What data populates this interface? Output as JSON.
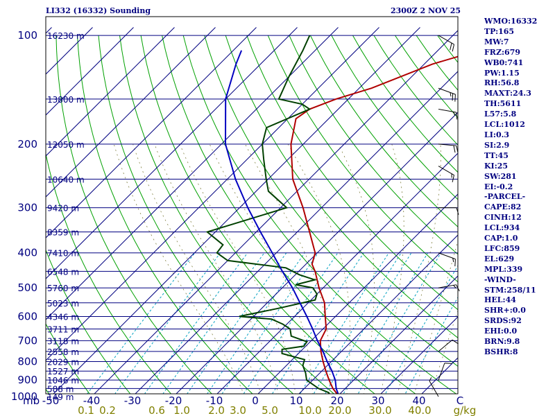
{
  "header": {
    "station": "LI332 (16332) Sounding",
    "time": "2300Z  2 NOV 25"
  },
  "stats": [
    "WMO:16332",
    "TP:165",
    "MW:7",
    "FRZ:679",
    "WB0:741",
    "PW:1.15",
    "RH:56.8",
    "MAXT:24.3",
    "TH:5611",
    "L57:5.8",
    "LCL:1012",
    "LI:0.3",
    "SI:2.9",
    "TT:45",
    "KI:25",
    "SW:281",
    "EI:-0.2",
    "-PARCEL-",
    "CAPE:82",
    "CINH:12",
    "LCL:934",
    "CAP:1.0",
    "LFC:859",
    "EL:629",
    "MPL:339",
    "-WIND-",
    "STM:258/11",
    "HEL:44",
    "SHR+:0.0",
    "SRDS:92",
    "EHI:0.0",
    "BRN:9.8",
    "BSHR:8"
  ],
  "colors": {
    "isobar": "#000080",
    "isotherm": "#000080",
    "dry_adiabat": "#00a000",
    "mixing_ratio": "#00a0c0",
    "temperature": "#b00000",
    "dewpoint": "#004000",
    "parcel": "#0000c0",
    "axis_text": "#000080",
    "mixing_label": "#808000"
  },
  "chart_data": {
    "type": "line",
    "title": "",
    "x_unit_label": "C",
    "y_unit_label": "mb",
    "mixing_unit_label": "g/kg",
    "xlim": [
      -50,
      50
    ],
    "ylim": [
      1000,
      100
    ],
    "pressure_ticks": [
      100,
      200,
      300,
      400,
      500,
      600,
      700,
      800,
      900,
      1000
    ],
    "temperature_ticks": [
      -50,
      -40,
      -30,
      -20,
      -10,
      0,
      10,
      20,
      30,
      40,
      50
    ],
    "temperature_tick_labels": [
      "-50",
      "-40",
      "-30",
      "-20",
      "-10",
      "0",
      "10",
      "20",
      "30",
      "40",
      "C"
    ],
    "mixing_ratio_labels": [
      "0.1",
      "0.2",
      "0.6",
      "1.0",
      "2.0",
      "3.0",
      "5.0",
      "10.0",
      "20.0",
      "30.0",
      "40.0"
    ],
    "heights": [
      {
        "p": 100,
        "label": "16230 m"
      },
      {
        "p": 150,
        "label": "13800 m"
      },
      {
        "p": 200,
        "label": "12050 m"
      },
      {
        "p": 250,
        "label": "10640 m"
      },
      {
        "p": 300,
        "label": "9420 m"
      },
      {
        "p": 350,
        "label": "8359 m"
      },
      {
        "p": 400,
        "label": "7410 m"
      },
      {
        "p": 450,
        "label": "6548 m"
      },
      {
        "p": 500,
        "label": "5760 m"
      },
      {
        "p": 550,
        "label": "5023 m"
      },
      {
        "p": 600,
        "label": "4346 m"
      },
      {
        "p": 650,
        "label": "3711 m"
      },
      {
        "p": 700,
        "label": "3118 m"
      },
      {
        "p": 750,
        "label": "2558 m"
      },
      {
        "p": 800,
        "label": "2029 m"
      },
      {
        "p": 850,
        "label": "1527 m"
      },
      {
        "p": 900,
        "label": "1046 m"
      },
      {
        "p": 950,
        "label": "588 m"
      },
      {
        "p": 1000,
        "label": "149 m"
      }
    ],
    "series": [
      {
        "key": "temperature",
        "points": [
          [
            1015,
            21.5
          ],
          [
            1000,
            20.5
          ],
          [
            950,
            17.0
          ],
          [
            900,
            14.0
          ],
          [
            850,
            11.0
          ],
          [
            800,
            8.0
          ],
          [
            750,
            5.0
          ],
          [
            700,
            2.2
          ],
          [
            650,
            0.8
          ],
          [
            600,
            -2.5
          ],
          [
            550,
            -6.0
          ],
          [
            500,
            -11.0
          ],
          [
            450,
            -16.0
          ],
          [
            430,
            -18.5
          ],
          [
            400,
            -20.5
          ],
          [
            350,
            -27.0
          ],
          [
            300,
            -34.5
          ],
          [
            250,
            -44.0
          ],
          [
            200,
            -53.0
          ],
          [
            170,
            -58.0
          ],
          [
            160,
            -57.0
          ],
          [
            150,
            -53.0
          ],
          [
            140,
            -47.0
          ],
          [
            120,
            -38.0
          ],
          [
            110,
            -30.0
          ],
          [
            100,
            -26.0
          ]
        ]
      },
      {
        "key": "dewpoint",
        "points": [
          [
            1015,
            18.0
          ],
          [
            1000,
            18.0
          ],
          [
            975,
            17.0
          ],
          [
            950,
            13.5
          ],
          [
            900,
            8.5
          ],
          [
            860,
            6.5
          ],
          [
            820,
            4.0
          ],
          [
            790,
            3.0
          ],
          [
            760,
            -4.0
          ],
          [
            740,
            -5.0
          ],
          [
            725,
            -0.5
          ],
          [
            705,
            -0.8
          ],
          [
            680,
            -6.0
          ],
          [
            650,
            -8.0
          ],
          [
            630,
            -11.0
          ],
          [
            610,
            -15.0
          ],
          [
            600,
            -23.5
          ],
          [
            570,
            -16.0
          ],
          [
            540,
            -9.0
          ],
          [
            520,
            -10.0
          ],
          [
            500,
            -12.5
          ],
          [
            490,
            -17.5
          ],
          [
            475,
            -14.0
          ],
          [
            460,
            -19.0
          ],
          [
            440,
            -24.0
          ],
          [
            420,
            -40.0
          ],
          [
            400,
            -44.5
          ],
          [
            380,
            -45.0
          ],
          [
            350,
            -52.0
          ],
          [
            300,
            -38.5
          ],
          [
            270,
            -47.0
          ],
          [
            250,
            -50.5
          ],
          [
            220,
            -56.0
          ],
          [
            200,
            -60.0
          ],
          [
            180,
            -63.0
          ],
          [
            160,
            -57.0
          ],
          [
            155,
            -60.0
          ],
          [
            150,
            -67.0
          ],
          [
            130,
            -70.0
          ],
          [
            110,
            -73.0
          ],
          [
            100,
            -75.0
          ]
        ]
      },
      {
        "key": "parcel",
        "points": [
          [
            1015,
            22.0
          ],
          [
            1000,
            20.5
          ],
          [
            950,
            17.8
          ],
          [
            900,
            15.5
          ],
          [
            850,
            12.5
          ],
          [
            800,
            9.0
          ],
          [
            750,
            5.5
          ],
          [
            700,
            1.5
          ],
          [
            650,
            -2.5
          ],
          [
            600,
            -7.0
          ],
          [
            550,
            -12.0
          ],
          [
            500,
            -17.5
          ],
          [
            450,
            -24.0
          ],
          [
            400,
            -31.0
          ],
          [
            350,
            -39.0
          ],
          [
            300,
            -48.0
          ],
          [
            250,
            -58.0
          ],
          [
            200,
            -69.0
          ],
          [
            150,
            -80.0
          ],
          [
            120,
            -86.0
          ],
          [
            110,
            -88.0
          ]
        ]
      }
    ],
    "wind_barbs": [
      {
        "p": 100,
        "dir": 300,
        "spd": 20
      },
      {
        "p": 140,
        "dir": 290,
        "spd": 25
      },
      {
        "p": 160,
        "dir": 280,
        "spd": 15
      },
      {
        "p": 200,
        "dir": 275,
        "spd": 20
      },
      {
        "p": 230,
        "dir": 300,
        "spd": 15
      },
      {
        "p": 300,
        "dir": 270,
        "spd": 10
      },
      {
        "p": 400,
        "dir": 290,
        "spd": 15
      },
      {
        "p": 500,
        "dir": 260,
        "spd": 15
      },
      {
        "p": 750,
        "dir": 230,
        "spd": 10
      },
      {
        "p": 900,
        "dir": 200,
        "spd": 10
      },
      {
        "p": 1000,
        "dir": 150,
        "spd": 5
      }
    ],
    "grid": true
  }
}
